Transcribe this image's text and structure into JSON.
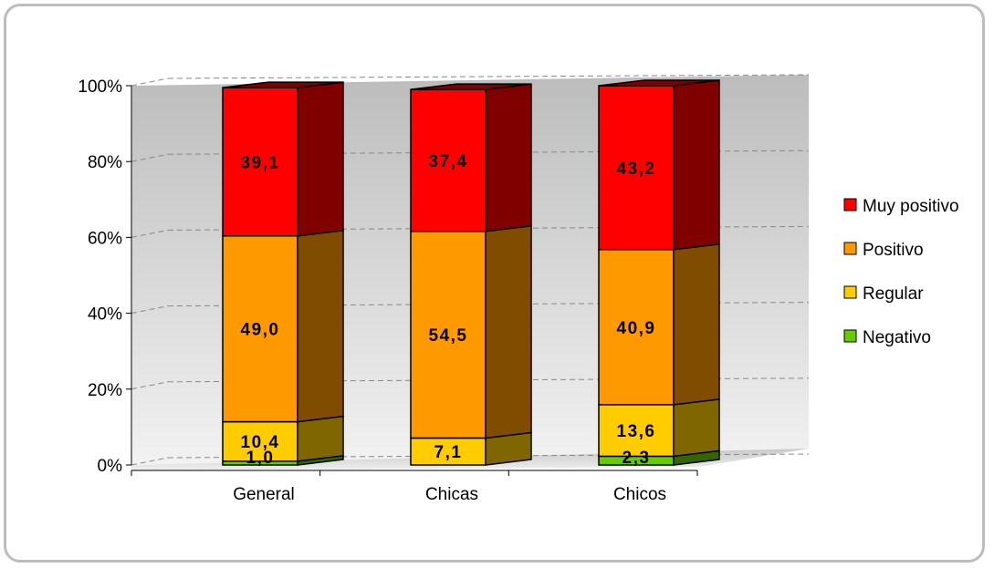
{
  "chart_data": {
    "type": "bar",
    "stacked": true,
    "percent_stacked": true,
    "three_d": true,
    "categories": [
      "General",
      "Chicas",
      "Chicos"
    ],
    "series": [
      {
        "name": "Negativo",
        "values": [
          1.0,
          0.0,
          2.3
        ],
        "labels": [
          "1,0",
          "",
          "2,3"
        ],
        "color": "#66cc00",
        "side_color": "#336600"
      },
      {
        "name": "Regular",
        "values": [
          10.4,
          7.1,
          13.6
        ],
        "labels": [
          "10,4",
          "7,1",
          "13,6"
        ],
        "color": "#ffcc00",
        "side_color": "#806600"
      },
      {
        "name": "Positivo",
        "values": [
          49.0,
          54.5,
          40.9
        ],
        "labels": [
          "49,0",
          "54,5",
          "40,9"
        ],
        "color": "#ff9900",
        "side_color": "#804c00"
      },
      {
        "name": "Muy positivo",
        "values": [
          39.1,
          37.4,
          43.2
        ],
        "labels": [
          "39,1",
          "37,4",
          "43,2"
        ],
        "color": "#ff0000",
        "side_color": "#800000"
      }
    ],
    "y_ticks": [
      "0%",
      "20%",
      "40%",
      "60%",
      "80%",
      "100%"
    ],
    "ylim": [
      0,
      100
    ],
    "grid": true,
    "legend_position": "right",
    "legend_order": [
      "Muy positivo",
      "Positivo",
      "Regular",
      "Negativo"
    ],
    "title": "",
    "xlabel": "",
    "ylabel": ""
  }
}
